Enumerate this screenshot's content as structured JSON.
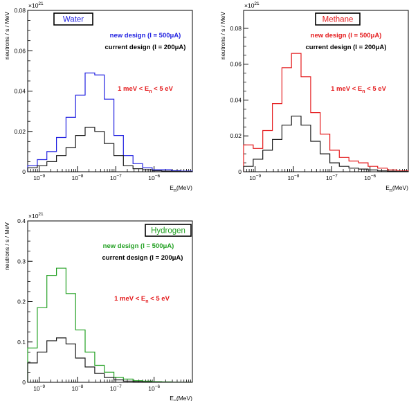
{
  "chart_data": [
    {
      "type": "line",
      "title": "Water",
      "xlabel": "E_n(MeV)",
      "ylabel": "neutrons / s / MeV",
      "y_exponent": "×10^21",
      "x_log": true,
      "xlim": [
        5e-10,
        1e-05
      ],
      "ylim": [
        0,
        0.08
      ],
      "x_ticks": [
        "10^-9",
        "10^-8",
        "10^-7",
        "10^-6"
      ],
      "y_ticks": [
        "0",
        "0.02",
        "0.04",
        "0.06",
        "0.08"
      ],
      "annotation": "1 meV < E_n < 5 eV",
      "annotation_color": "#e41a1c",
      "bin_edges": [
        5e-10,
        8.9e-10,
        1.58e-09,
        2.82e-09,
        5.01e-09,
        8.91e-09,
        1.58e-08,
        2.82e-08,
        5.01e-08,
        8.91e-08,
        1.58e-07,
        2.82e-07,
        5.01e-07,
        8.91e-07,
        1.58e-06,
        2.82e-06,
        5.01e-06,
        1e-05
      ],
      "series": [
        {
          "name": "new design (I = 500μA)",
          "color": "#1f1fe0",
          "values": [
            0.003,
            0.006,
            0.01,
            0.017,
            0.027,
            0.038,
            0.049,
            0.048,
            0.036,
            0.018,
            0.008,
            0.004,
            0.002,
            0.001,
            0.001,
            0.0005,
            0.0003
          ]
        },
        {
          "name": "current design (I = 200μA)",
          "color": "#1a1a1a",
          "values": [
            0.002,
            0.003,
            0.005,
            0.008,
            0.012,
            0.018,
            0.022,
            0.02,
            0.014,
            0.008,
            0.003,
            0.0015,
            0.001,
            0.0005,
            0.0003,
            0.0002,
            0.0001
          ]
        }
      ]
    },
    {
      "type": "line",
      "title": "Methane",
      "xlabel": "E_n(MeV)",
      "ylabel": "neutrons / s / MeV",
      "y_exponent": "×10^21",
      "x_log": true,
      "xlim": [
        5e-10,
        1e-05
      ],
      "ylim": [
        0,
        0.09
      ],
      "x_ticks": [
        "10^-9",
        "10^-8",
        "10^-7",
        "10^-6"
      ],
      "y_ticks": [
        "0",
        "0.02",
        "0.04",
        "0.06",
        "0.08"
      ],
      "annotation": "1 meV < E_n < 5 eV",
      "annotation_color": "#e41a1c",
      "bin_edges": [
        5e-10,
        8.9e-10,
        1.58e-09,
        2.82e-09,
        5.01e-09,
        8.91e-09,
        1.58e-08,
        2.82e-08,
        5.01e-08,
        8.91e-08,
        1.58e-07,
        2.82e-07,
        5.01e-07,
        8.91e-07,
        1.58e-06,
        2.82e-06,
        5.01e-06,
        1e-05
      ],
      "series": [
        {
          "name": "new design (I = 500μA)",
          "color": "#e41a1c",
          "values": [
            0.015,
            0.013,
            0.023,
            0.038,
            0.058,
            0.066,
            0.053,
            0.033,
            0.021,
            0.012,
            0.008,
            0.006,
            0.005,
            0.003,
            0.002,
            0.001,
            0.0005
          ]
        },
        {
          "name": "current design (I = 200μA)",
          "color": "#1a1a1a",
          "values": [
            0.003,
            0.007,
            0.012,
            0.018,
            0.026,
            0.031,
            0.026,
            0.017,
            0.01,
            0.005,
            0.003,
            0.002,
            0.0015,
            0.001,
            0.0005,
            0.0003,
            0.0002
          ]
        }
      ]
    },
    {
      "type": "line",
      "title": "Hydrogen",
      "xlabel": "E_n(MeV)",
      "ylabel": "neutrons / s / MeV",
      "y_exponent": "×10^21",
      "x_log": true,
      "xlim": [
        5e-10,
        1e-05
      ],
      "ylim": [
        0,
        0.4
      ],
      "x_ticks": [
        "10^-9",
        "10^-8",
        "10^-7",
        "10^-6"
      ],
      "y_ticks": [
        "0",
        "0.1",
        "0.2",
        "0.3",
        "0.4"
      ],
      "annotation": "1 meV < E_n < 5 eV",
      "annotation_color": "#e41a1c",
      "bin_edges": [
        5e-10,
        8.9e-10,
        1.58e-09,
        2.82e-09,
        5.01e-09,
        8.91e-09,
        1.58e-08,
        2.82e-08,
        5.01e-08,
        8.91e-08,
        1.58e-07,
        2.82e-07,
        5.01e-07,
        8.91e-07,
        1.58e-06,
        2.82e-06,
        5.01e-06,
        1e-05
      ],
      "series": [
        {
          "name": "new design (I = 500μA)",
          "color": "#22a022",
          "values": [
            0.085,
            0.185,
            0.265,
            0.283,
            0.22,
            0.13,
            0.075,
            0.042,
            0.025,
            0.012,
            0.008,
            0.004,
            0.003,
            0.0015,
            0.001,
            0.0005,
            0.0003
          ]
        },
        {
          "name": "current design (I = 200μA)",
          "color": "#1a1a1a",
          "values": [
            0.048,
            0.075,
            0.103,
            0.11,
            0.095,
            0.06,
            0.038,
            0.022,
            0.012,
            0.006,
            0.003,
            0.002,
            0.001,
            0.0005,
            0.0003,
            0.0002,
            0.0001
          ]
        }
      ]
    }
  ]
}
